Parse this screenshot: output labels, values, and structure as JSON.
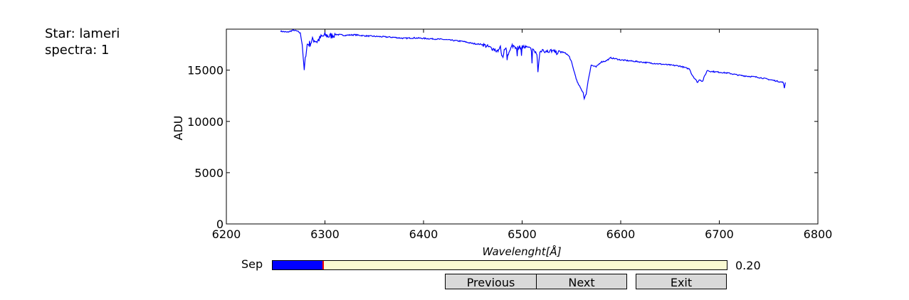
{
  "info": {
    "star_line": "Star: lameri",
    "spectra_line": "spectra: 1"
  },
  "chart_data": {
    "type": "line",
    "xlabel": "Wavelenght[Å]",
    "ylabel": "ADU",
    "xlim": [
      6200,
      6800
    ],
    "ylim": [
      0,
      19000
    ],
    "xticks": [
      6200,
      6300,
      6400,
      6500,
      6600,
      6700,
      6800
    ],
    "yticks": [
      0,
      5000,
      10000,
      15000
    ],
    "grid": false,
    "color": "#0000ff",
    "series": [
      {
        "x": [
          6255,
          6262,
          6268,
          6272,
          6275,
          6277,
          6278,
          6279,
          6280,
          6282,
          6285,
          6288,
          6292,
          6296,
          6300,
          6305,
          6310,
          6320,
          6330,
          6340,
          6350,
          6360,
          6370,
          6380,
          6390,
          6400,
          6410,
          6420,
          6430,
          6440,
          6450,
          6460,
          6465,
          6470,
          6475,
          6478,
          6480,
          6483,
          6486,
          6490,
          6495,
          6500,
          6505,
          6510,
          6515,
          6516,
          6518,
          6520,
          6525,
          6530,
          6535,
          6540,
          6545,
          6548,
          6550,
          6553,
          6556,
          6559,
          6562,
          6563,
          6565,
          6567,
          6570,
          6575,
          6580,
          6585,
          6590,
          6595,
          6600,
          6610,
          6620,
          6630,
          6640,
          6650,
          6660,
          6670,
          6672,
          6675,
          6678,
          6680,
          6683,
          6685,
          6688,
          6690,
          6700,
          6710,
          6720,
          6730,
          6740,
          6750,
          6760,
          6765,
          6766,
          6767
        ],
        "y": [
          18800,
          18700,
          18900,
          18800,
          18600,
          17500,
          16200,
          15000,
          16200,
          17500,
          17600,
          18000,
          17800,
          18200,
          18400,
          18300,
          18500,
          18400,
          18450,
          18350,
          18300,
          18250,
          18200,
          18100,
          18150,
          18100,
          18050,
          18000,
          17900,
          17800,
          17600,
          17500,
          17300,
          17100,
          16900,
          17200,
          16200,
          17300,
          16500,
          17400,
          17200,
          17300,
          17200,
          17000,
          16600,
          14900,
          16700,
          17000,
          16800,
          16900,
          16700,
          16800,
          16600,
          16300,
          15800,
          14800,
          13800,
          13300,
          12800,
          12200,
          12700,
          14000,
          15500,
          15300,
          15800,
          15900,
          16200,
          16100,
          16000,
          15900,
          15800,
          15700,
          15600,
          15500,
          15400,
          15100,
          14600,
          14200,
          13800,
          14100,
          13900,
          14400,
          15000,
          14900,
          14800,
          14700,
          14500,
          14400,
          14300,
          14100,
          13900,
          13800,
          13200,
          13800
        ]
      }
    ]
  },
  "slider": {
    "label": "Sep",
    "value": 0.2,
    "value_text": "0.20",
    "min": 0,
    "max": 1.8,
    "fill_color": "#0000ff",
    "track_color": "#fafad2",
    "marker_color": "#ff0000"
  },
  "buttons": {
    "previous": "Previous",
    "next": "Next",
    "exit": "Exit"
  }
}
